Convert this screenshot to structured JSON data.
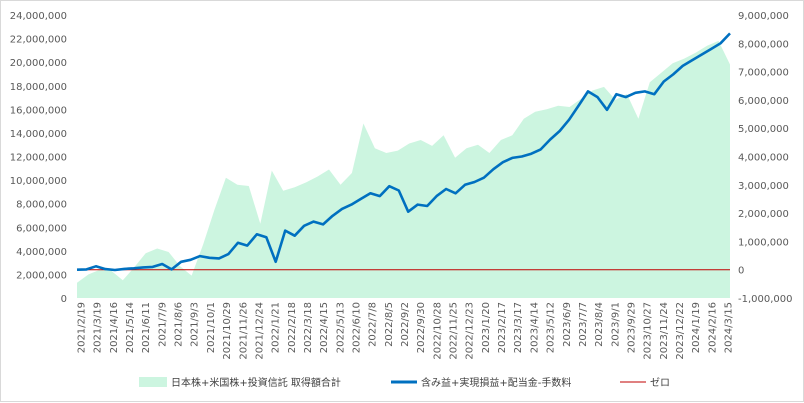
{
  "chart_data": {
    "type": "line",
    "title": "",
    "xlabel": "",
    "ylabel": "",
    "y_left": {
      "min": 0,
      "max": 24000000,
      "step": 2000000,
      "tick_labels": [
        "0",
        "2,000,000",
        "4,000,000",
        "6,000,000",
        "8,000,000",
        "10,000,000",
        "12,000,000",
        "14,000,000",
        "16,000,000",
        "18,000,000",
        "20,000,000",
        "22,000,000",
        "24,000,000"
      ]
    },
    "y_right": {
      "min": -1000000,
      "max": 9000000,
      "step": 1000000,
      "tick_labels": [
        "-1,000,000",
        "0",
        "1,000,000",
        "2,000,000",
        "3,000,000",
        "4,000,000",
        "5,000,000",
        "6,000,000",
        "7,000,000",
        "8,000,000",
        "9,000,000"
      ]
    },
    "x_tick_labels": [
      "2021/2/19",
      "2021/3/19",
      "2021/4/16",
      "2021/5/14",
      "2021/6/11",
      "2021/7/9",
      "2021/8/6",
      "2021/9/3",
      "2021/10/1",
      "2021/10/29",
      "2021/11/26",
      "2021/12/24",
      "2022/1/21",
      "2022/2/18",
      "2022/3/18",
      "2022/4/15",
      "2022/5/13",
      "2022/6/10",
      "2022/7/8",
      "2022/8/5",
      "2022/9/2",
      "2022/9/30",
      "2022/10/28",
      "2022/11/25",
      "2022/12/23",
      "2023/1/20",
      "2023/2/17",
      "2023/3/17",
      "2023/4/14",
      "2023/5/12",
      "2023/6/9",
      "2023/7/7",
      "2023/8/4",
      "2023/9/1",
      "2023/9/29",
      "2023/10/27",
      "2023/11/24",
      "2023/12/22",
      "2024/1/19",
      "2024/2/16",
      "2024/3/15"
    ],
    "grid": false,
    "legend_position": "bottom",
    "series": [
      {
        "name": "日本株+米国株+投資信託 取得額合計",
        "type": "area",
        "axis": "left",
        "color": "#ccf5e0",
        "values": [
          1300000,
          2000000,
          2400000,
          2300000,
          1500000,
          2600000,
          3800000,
          4200000,
          3900000,
          2700000,
          1900000,
          4500000,
          7500000,
          10200000,
          9600000,
          9500000,
          6300000,
          10800000,
          9100000,
          9400000,
          9800000,
          10300000,
          10900000,
          9600000,
          10600000,
          14800000,
          12700000,
          12300000,
          12500000,
          13100000,
          13400000,
          12900000,
          13800000,
          11900000,
          12700000,
          13000000,
          12300000,
          13400000,
          13800000,
          15200000,
          15800000,
          16000000,
          16300000,
          16200000,
          16900000,
          17600000,
          17900000,
          16800000,
          17300000,
          15200000,
          18300000,
          19100000,
          19900000,
          20300000,
          20800000,
          21400000,
          21800000,
          19800000
        ]
      },
      {
        "name": "含み益+実現損益+配当金-手数料",
        "type": "line",
        "axis": "right",
        "color": "#0070c0",
        "values": [
          0,
          10000,
          120000,
          20000,
          -10000,
          30000,
          50000,
          80000,
          100000,
          200000,
          10000,
          280000,
          350000,
          480000,
          420000,
          400000,
          550000,
          950000,
          850000,
          1250000,
          1150000,
          280000,
          1380000,
          1200000,
          1550000,
          1700000,
          1600000,
          1900000,
          2150000,
          2300000,
          2500000,
          2700000,
          2600000,
          2950000,
          2800000,
          2050000,
          2300000,
          2250000,
          2600000,
          2850000,
          2700000,
          3000000,
          3100000,
          3250000,
          3550000,
          3800000,
          3950000,
          4000000,
          4100000,
          4250000,
          4600000,
          4900000,
          5300000,
          5800000,
          6300000,
          6100000,
          5650000,
          6200000,
          6100000,
          6250000,
          6300000,
          6200000,
          6650000,
          6900000,
          7200000,
          7400000,
          7600000,
          7800000,
          8000000,
          8350000
        ]
      },
      {
        "name": "ゼロ",
        "type": "line",
        "axis": "right",
        "color": "#c00000",
        "values": [
          0,
          0
        ]
      }
    ]
  }
}
